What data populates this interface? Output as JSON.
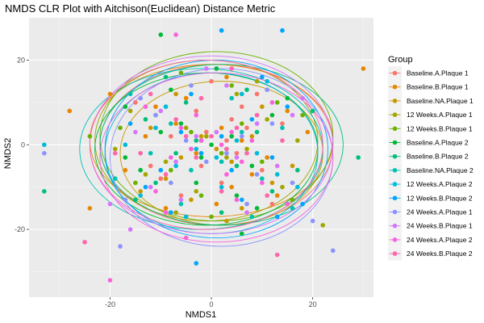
{
  "chart_data": {
    "type": "scatter",
    "title": "NMDS CLR Plot with Aitchison(Euclidean) Distance Metric",
    "xlabel": "NMDS1",
    "ylabel": "NMDS2",
    "xlim": [
      -36,
      32
    ],
    "ylim": [
      -36,
      30
    ],
    "xticks": [
      -20,
      0,
      20
    ],
    "yticks": [
      -20,
      0,
      20
    ],
    "grid": true,
    "legend": {
      "title": "Group",
      "position": "right"
    },
    "series": [
      {
        "name": "Baseline.A.Plaque 1",
        "color": "#F8766D",
        "ellipse": {
          "cx": 1,
          "cy": 0,
          "rx": 23,
          "ry": 19
        },
        "points": [
          [
            3,
            1
          ],
          [
            -1,
            3
          ],
          [
            5,
            -2
          ],
          [
            -4,
            -1
          ],
          [
            7,
            4
          ],
          [
            -8,
            2
          ],
          [
            10,
            -6
          ],
          [
            -12,
            -5
          ],
          [
            2,
            -9
          ],
          [
            -3,
            8
          ],
          [
            14,
            5
          ],
          [
            -6,
            -12
          ],
          [
            0,
            15
          ],
          [
            12,
            -14
          ],
          [
            -15,
            10
          ],
          [
            6,
            9
          ],
          [
            -2,
            -5
          ],
          [
            4,
            6
          ],
          [
            -10,
            -8
          ],
          [
            9,
            12
          ]
        ]
      },
      {
        "name": "Baseline.B.Plaque 1",
        "color": "#E58700",
        "ellipse": {
          "cx": 0,
          "cy": 1,
          "rx": 24,
          "ry": 18
        },
        "points": [
          [
            2,
            4
          ],
          [
            -3,
            -2
          ],
          [
            6,
            1
          ],
          [
            -7,
            5
          ],
          [
            11,
            -3
          ],
          [
            -13,
            2
          ],
          [
            4,
            -10
          ],
          [
            -5,
            11
          ],
          [
            15,
            8
          ],
          [
            -17,
            -6
          ],
          [
            1,
            -14
          ],
          [
            8,
            -7
          ],
          [
            -9,
            -15
          ],
          [
            19,
            3
          ],
          [
            -20,
            12
          ],
          [
            3,
            16
          ],
          [
            -11,
            9
          ],
          [
            13,
            -12
          ],
          [
            30,
            18
          ],
          [
            -28,
            8
          ],
          [
            -24,
            -15
          ]
        ]
      },
      {
        "name": "Baseline.NA.Plaque 1",
        "color": "#C99800",
        "ellipse": {
          "cx": 2,
          "cy": -2,
          "rx": 20,
          "ry": 17
        },
        "points": [
          [
            1,
            -1
          ],
          [
            -2,
            2
          ],
          [
            4,
            -4
          ],
          [
            -6,
            -3
          ],
          [
            8,
            2
          ],
          [
            -9,
            -8
          ],
          [
            12,
            -9
          ],
          [
            -4,
            -13
          ],
          [
            6,
            -15
          ],
          [
            -12,
            4
          ],
          [
            16,
            -5
          ],
          [
            -14,
            -11
          ],
          [
            10,
            9
          ],
          [
            -7,
            12
          ],
          [
            3,
            -18
          ]
        ]
      },
      {
        "name": "12 Weeks.A.Plaque 1",
        "color": "#A3A500",
        "ellipse": {
          "cx": -1,
          "cy": 1,
          "rx": 22,
          "ry": 19
        },
        "points": [
          [
            -1,
            2
          ],
          [
            3,
            -3
          ],
          [
            -5,
            4
          ],
          [
            7,
            -1
          ],
          [
            -9,
            -4
          ],
          [
            11,
            6
          ],
          [
            -13,
            -7
          ],
          [
            5,
            12
          ],
          [
            -3,
            -11
          ],
          [
            14,
            -10
          ],
          [
            -16,
            8
          ],
          [
            9,
            15
          ],
          [
            -7,
            -16
          ],
          [
            17,
            1
          ],
          [
            -19,
            -1
          ],
          [
            22,
            -19
          ]
        ]
      },
      {
        "name": "12 Weeks.B.Plaque 1",
        "color": "#6BB100",
        "ellipse": {
          "cx": 1,
          "cy": 2,
          "rx": 23,
          "ry": 20
        },
        "points": [
          [
            2,
            -2
          ],
          [
            -4,
            3
          ],
          [
            6,
            5
          ],
          [
            -8,
            -6
          ],
          [
            10,
            -4
          ],
          [
            -11,
            7
          ],
          [
            13,
            10
          ],
          [
            -2,
            -12
          ],
          [
            4,
            14
          ],
          [
            -15,
            -9
          ],
          [
            16,
            -13
          ],
          [
            -6,
            17
          ],
          [
            18,
            7
          ],
          [
            -18,
            4
          ],
          [
            0,
            -17
          ],
          [
            -24,
            2
          ]
        ]
      },
      {
        "name": "Baseline.A.Plaque 2",
        "color": "#00BA38",
        "ellipse": {
          "cx": -1,
          "cy": -1,
          "rx": 22,
          "ry": 18
        },
        "points": [
          [
            0,
            0
          ],
          [
            -2,
            -3
          ],
          [
            4,
            2
          ],
          [
            -6,
            5
          ],
          [
            8,
            -5
          ],
          [
            -10,
            3
          ],
          [
            12,
            7
          ],
          [
            -3,
            -9
          ],
          [
            5,
            -12
          ],
          [
            -14,
            -6
          ],
          [
            15,
            11
          ],
          [
            -8,
            13
          ],
          [
            9,
            -15
          ],
          [
            -17,
            9
          ],
          [
            1,
            18
          ],
          [
            -10,
            26
          ],
          [
            -17,
            -3
          ],
          [
            6,
            -21
          ]
        ]
      },
      {
        "name": "Baseline.B.Plaque 2",
        "color": "#00BF7D",
        "ellipse": {
          "cx": 2,
          "cy": 0,
          "rx": 24,
          "ry": 19
        },
        "points": [
          [
            3,
            -1
          ],
          [
            -3,
            1
          ],
          [
            5,
            -5
          ],
          [
            -7,
            -2
          ],
          [
            9,
            3
          ],
          [
            -11,
            -9
          ],
          [
            12,
            -11
          ],
          [
            -5,
            10
          ],
          [
            7,
            13
          ],
          [
            -13,
            6
          ],
          [
            17,
            -6
          ],
          [
            -15,
            -13
          ],
          [
            2,
            -16
          ],
          [
            -9,
            16
          ],
          [
            20,
            8
          ],
          [
            29,
            -3
          ],
          [
            -33,
            -11
          ]
        ]
      },
      {
        "name": "Baseline.NA.Plaque 2",
        "color": "#00C1B2",
        "ellipse": {
          "cx": -2,
          "cy": -1,
          "rx": 24,
          "ry": 19
        },
        "points": [
          [
            -2,
            1
          ],
          [
            2,
            -4
          ],
          [
            -4,
            -6
          ],
          [
            6,
            3
          ],
          [
            -8,
            5
          ],
          [
            10,
            -8
          ],
          [
            -12,
            -2
          ],
          [
            4,
            11
          ],
          [
            -6,
            -14
          ],
          [
            14,
            4
          ],
          [
            -16,
            12
          ],
          [
            8,
            -17
          ],
          [
            -19,
            -8
          ],
          [
            16,
            -15
          ]
        ]
      },
      {
        "name": "12 Weeks.A.Plaque 2",
        "color": "#00BBDB",
        "ellipse": {
          "cx": 0,
          "cy": -2,
          "rx": 21,
          "ry": 19
        },
        "points": [
          [
            1,
            -3
          ],
          [
            -3,
            -1
          ],
          [
            5,
            1
          ],
          [
            -7,
            -5
          ],
          [
            9,
            -2
          ],
          [
            -11,
            4
          ],
          [
            2,
            -10
          ],
          [
            13,
            -7
          ],
          [
            -9,
            9
          ],
          [
            6,
            12
          ],
          [
            -14,
            -12
          ],
          [
            11,
            15
          ],
          [
            -5,
            -17
          ],
          [
            17,
            -10
          ],
          [
            -17,
            0
          ],
          [
            -33,
            0
          ]
        ]
      },
      {
        "name": "12 Weeks.B.Plaque 2",
        "color": "#00A5FF",
        "ellipse": {
          "cx": 1,
          "cy": -1,
          "rx": 22,
          "ry": 21
        },
        "points": [
          [
            2,
            2
          ],
          [
            -2,
            -2
          ],
          [
            4,
            -6
          ],
          [
            -6,
            3
          ],
          [
            8,
            6
          ],
          [
            -10,
            -6
          ],
          [
            12,
            -3
          ],
          [
            -4,
            12
          ],
          [
            6,
            -13
          ],
          [
            -13,
            -10
          ],
          [
            15,
            9
          ],
          [
            -8,
            -16
          ],
          [
            10,
            16
          ],
          [
            -16,
            5
          ],
          [
            18,
            -14
          ],
          [
            14,
            27
          ],
          [
            2,
            27
          ],
          [
            -3,
            -28
          ],
          [
            13,
            -17
          ]
        ]
      },
      {
        "name": "24 Weeks.A.Plaque 1",
        "color": "#8B93FF",
        "ellipse": {
          "cx": 2,
          "cy": -3,
          "rx": 22,
          "ry": 21
        },
        "points": [
          [
            3,
            -2
          ],
          [
            -1,
            -4
          ],
          [
            6,
            2
          ],
          [
            -5,
            1
          ],
          [
            9,
            -7
          ],
          [
            -8,
            -9
          ],
          [
            12,
            5
          ],
          [
            -11,
            7
          ],
          [
            7,
            -14
          ],
          [
            -4,
            14
          ],
          [
            16,
            -9
          ],
          [
            -14,
            11
          ],
          [
            11,
            13
          ],
          [
            -17,
            -13
          ],
          [
            20,
            -18
          ],
          [
            -33,
            -2
          ],
          [
            -18,
            -24
          ],
          [
            24,
            -25
          ]
        ]
      },
      {
        "name": "24 Weeks.B.Plaque 1",
        "color": "#D575FE",
        "ellipse": {
          "cx": 0,
          "cy": 0,
          "rx": 24,
          "ry": 21
        },
        "points": [
          [
            1,
            3
          ],
          [
            -3,
            2
          ],
          [
            5,
            -3
          ],
          [
            -7,
            -4
          ],
          [
            9,
            5
          ],
          [
            -10,
            8
          ],
          [
            13,
            -5
          ],
          [
            -12,
            -10
          ],
          [
            3,
            14
          ],
          [
            -6,
            -13
          ],
          [
            16,
            7
          ],
          [
            -15,
            3
          ],
          [
            7,
            -16
          ],
          [
            -1,
            18
          ],
          [
            18,
            11
          ],
          [
            -20,
            -14
          ],
          [
            -16,
            -20
          ]
        ]
      },
      {
        "name": "24 Weeks.A.Plaque 2",
        "color": "#F962DD",
        "ellipse": {
          "cx": 1,
          "cy": -3,
          "rx": 23,
          "ry": 20
        },
        "points": [
          [
            2,
            0
          ],
          [
            -2,
            1
          ],
          [
            4,
            3
          ],
          [
            -4,
            -1
          ],
          [
            6,
            -4
          ],
          [
            -6,
            4
          ],
          [
            8,
            1
          ],
          [
            -8,
            -3
          ],
          [
            3,
            -7
          ],
          [
            -3,
            7
          ],
          [
            10,
            -9
          ],
          [
            -11,
            -11
          ],
          [
            12,
            10
          ],
          [
            -13,
            9
          ],
          [
            5,
            -13
          ],
          [
            -9,
            -16
          ],
          [
            15,
            -14
          ],
          [
            -5,
            -22
          ],
          [
            -7,
            26
          ],
          [
            -20,
            -32
          ]
        ]
      },
      {
        "name": "24 Weeks.B.Plaque 2",
        "color": "#FF65AC",
        "ellipse": {
          "cx": -1,
          "cy": 0,
          "rx": 23,
          "ry": 20
        },
        "points": [
          [
            0,
            2
          ],
          [
            3,
            -1
          ],
          [
            -3,
            -3
          ],
          [
            5,
            4
          ],
          [
            -5,
            2
          ],
          [
            7,
            -2
          ],
          [
            -7,
            6
          ],
          [
            9,
            7
          ],
          [
            -9,
            -7
          ],
          [
            2,
            -11
          ],
          [
            -2,
            11
          ],
          [
            11,
            -12
          ],
          [
            -12,
            12
          ],
          [
            14,
            1
          ],
          [
            -14,
            -2
          ],
          [
            4,
            18
          ],
          [
            13,
            -26
          ],
          [
            -19,
            -2
          ],
          [
            -25,
            -23
          ]
        ]
      }
    ]
  }
}
